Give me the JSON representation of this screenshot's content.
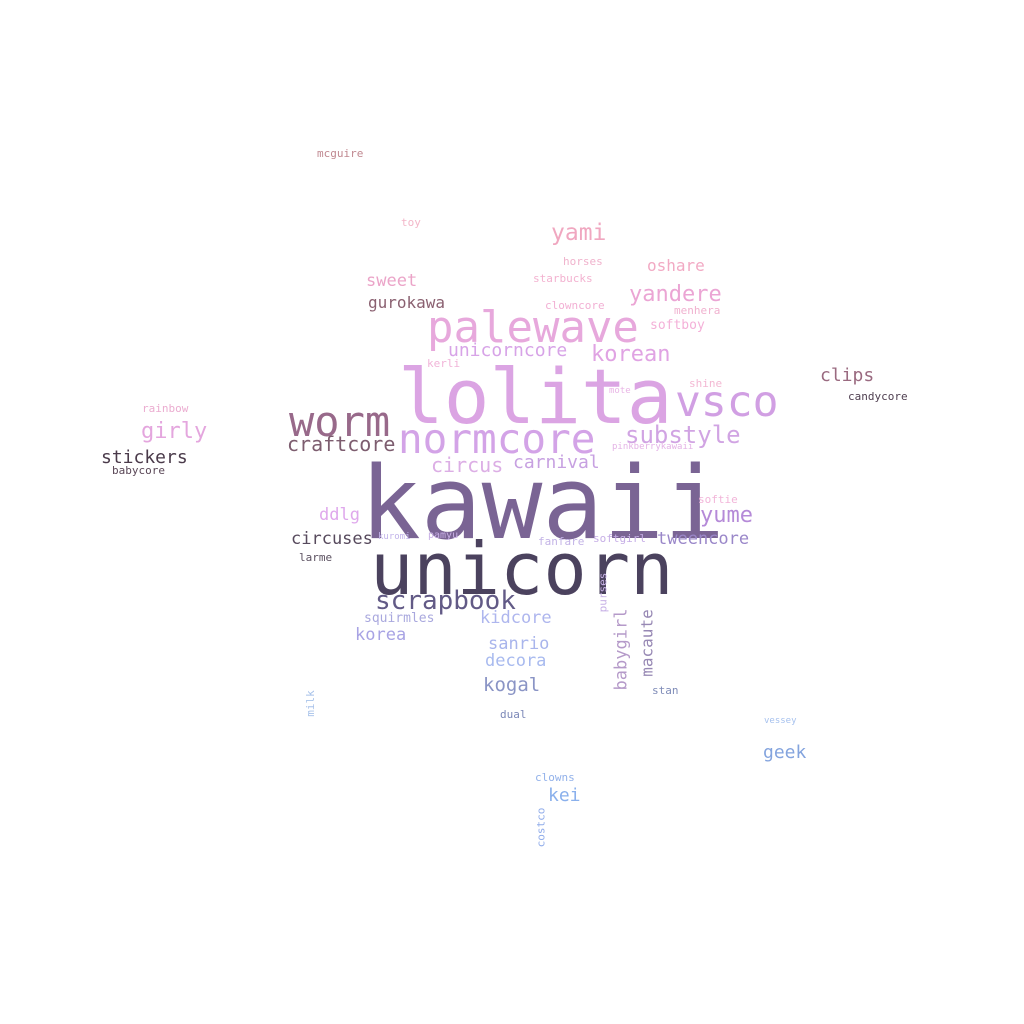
{
  "words": [
    {
      "text": "kawaii",
      "color": "#7a6494"
    },
    {
      "text": "unicorn",
      "color": "#4b425e"
    },
    {
      "text": "lolita",
      "color": "#dba4e3"
    },
    {
      "text": "palewave",
      "color": "#e7a8dc"
    },
    {
      "text": "normcore",
      "color": "#d3a3e7"
    },
    {
      "text": "worm",
      "color": "#98698a"
    },
    {
      "text": "vsco",
      "color": "#d19fe3"
    },
    {
      "text": "scrapbook",
      "color": "#625a86"
    },
    {
      "text": "substyle",
      "color": "#d1a4e3"
    },
    {
      "text": "yami",
      "color": "#f0a7c0"
    },
    {
      "text": "yandere",
      "color": "#eba5d4"
    },
    {
      "text": "korean",
      "color": "#e0a3e3"
    },
    {
      "text": "girly",
      "color": "#e4a6de"
    },
    {
      "text": "craftcore",
      "color": "#7d5d6f"
    },
    {
      "text": "unicorncore",
      "color": "#d7a3e7"
    },
    {
      "text": "circus",
      "color": "#dcaee5"
    },
    {
      "text": "carnival",
      "color": "#c7a1e1"
    },
    {
      "text": "stickers",
      "color": "#4a3a4a"
    },
    {
      "text": "yume",
      "color": "#b58ad8"
    },
    {
      "text": "clips",
      "color": "#9a6a80"
    },
    {
      "text": "oshare",
      "color": "#f2aac4"
    },
    {
      "text": "sweet",
      "color": "#eba4c8"
    },
    {
      "text": "gurokawa",
      "color": "#8a6070"
    },
    {
      "text": "circuses",
      "color": "#574a5d"
    },
    {
      "text": "ddlg",
      "color": "#dfa8ec"
    },
    {
      "text": "tweencore",
      "color": "#9a87c9"
    },
    {
      "text": "korea",
      "color": "#a8a3e4"
    },
    {
      "text": "kidcore",
      "color": "#aeb6ee"
    },
    {
      "text": "sanrio",
      "color": "#a9b5ec"
    },
    {
      "text": "decora",
      "color": "#a8baef"
    },
    {
      "text": "kogal",
      "color": "#8a94c5"
    },
    {
      "text": "geek",
      "color": "#84a4de"
    },
    {
      "text": "kei",
      "color": "#8ab0ec"
    },
    {
      "text": "babygirl",
      "color": "#b59ac9"
    },
    {
      "text": "macaute",
      "color": "#9788b4"
    },
    {
      "text": "squirmles",
      "color": "#a9a8de"
    },
    {
      "text": "softboy",
      "color": "#f4b0d8"
    },
    {
      "text": "candycore",
      "color": "#4f3f50"
    },
    {
      "text": "babycore",
      "color": "#5a4757"
    },
    {
      "text": "mcguire",
      "color": "#c08890"
    },
    {
      "text": "rainbow",
      "color": "#ebacd0"
    },
    {
      "text": "toy",
      "color": "#f3b6c8"
    },
    {
      "text": "horses",
      "color": "#f0b2cc"
    },
    {
      "text": "starbucks",
      "color": "#f3b2d0"
    },
    {
      "text": "clowncore",
      "color": "#f2b0d4"
    },
    {
      "text": "menhera",
      "color": "#f0b1cf"
    },
    {
      "text": "kerli",
      "color": "#f1b4d8"
    },
    {
      "text": "shine",
      "color": "#f3b8d3"
    },
    {
      "text": "mote",
      "color": "#e9b6e6"
    },
    {
      "text": "pinkberrykawaii",
      "color": "#e4b3e6"
    },
    {
      "text": "softie",
      "color": "#f2b5d9"
    },
    {
      "text": "larme",
      "color": "#5b5060"
    },
    {
      "text": "fanfare",
      "color": "#c3b3e6"
    },
    {
      "text": "softgirl",
      "color": "#c6aee6"
    },
    {
      "text": "kuromi",
      "color": "#c2b4ea"
    },
    {
      "text": "pamyu",
      "color": "#c9b0e6"
    },
    {
      "text": "purses",
      "color": "#c8b2e6"
    },
    {
      "text": "stan",
      "color": "#7f8cb8"
    },
    {
      "text": "dual",
      "color": "#7c88b8"
    },
    {
      "text": "milk",
      "color": "#a9c3ea"
    },
    {
      "text": "vessey",
      "color": "#a6c1ee"
    },
    {
      "text": "clowns",
      "color": "#92b1ea"
    },
    {
      "text": "costco",
      "color": "#90acea"
    }
  ]
}
